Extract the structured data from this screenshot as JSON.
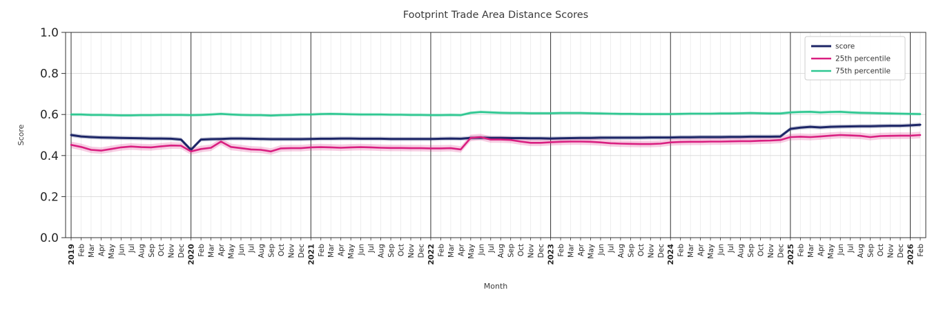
{
  "chart_data": {
    "type": "line",
    "title": "Footprint Trade Area Distance Scores",
    "xlabel": "Month",
    "ylabel": "Score",
    "ylim": [
      0.0,
      1.0
    ],
    "yticks": [
      0.0,
      0.2,
      0.4,
      0.6,
      0.8,
      1.0
    ],
    "grid": true,
    "legend_position": "upper right",
    "categories": [
      "2019",
      "Feb",
      "Mar",
      "Apr",
      "May",
      "Jun",
      "Jul",
      "Aug",
      "Sep",
      "Oct",
      "Nov",
      "Dec",
      "2020",
      "Feb",
      "Mar",
      "Apr",
      "May",
      "Jun",
      "Jul",
      "Aug",
      "Sep",
      "Oct",
      "Nov",
      "Dec",
      "2021",
      "Feb",
      "Mar",
      "Apr",
      "May",
      "Jun",
      "Jul",
      "Aug",
      "Sep",
      "Oct",
      "Nov",
      "Dec",
      "2022",
      "Feb",
      "Mar",
      "Apr",
      "May",
      "Jun",
      "Jul",
      "Aug",
      "Sep",
      "Oct",
      "Nov",
      "Dec",
      "2023",
      "Feb",
      "Mar",
      "Apr",
      "May",
      "Jun",
      "Jul",
      "Aug",
      "Sep",
      "Oct",
      "Nov",
      "Dec",
      "2024",
      "Feb",
      "Mar",
      "Apr",
      "May",
      "Jun",
      "Jul",
      "Aug",
      "Sep",
      "Oct",
      "Nov",
      "Dec",
      "2025",
      "Feb",
      "Mar",
      "Apr",
      "May",
      "Jun",
      "Jul",
      "Aug",
      "Sep",
      "Oct",
      "Nov",
      "Dec",
      "2026",
      "Feb"
    ],
    "series": [
      {
        "name": "score",
        "color": "#1c2566",
        "band": 0.01,
        "values": [
          0.5,
          0.493,
          0.49,
          0.488,
          0.487,
          0.486,
          0.485,
          0.484,
          0.483,
          0.483,
          0.482,
          0.478,
          0.428,
          0.478,
          0.48,
          0.481,
          0.483,
          0.483,
          0.482,
          0.481,
          0.48,
          0.48,
          0.48,
          0.48,
          0.481,
          0.482,
          0.482,
          0.483,
          0.483,
          0.482,
          0.482,
          0.482,
          0.481,
          0.481,
          0.481,
          0.481,
          0.481,
          0.482,
          0.483,
          0.482,
          0.486,
          0.487,
          0.486,
          0.486,
          0.485,
          0.485,
          0.484,
          0.484,
          0.483,
          0.484,
          0.485,
          0.486,
          0.486,
          0.487,
          0.487,
          0.487,
          0.487,
          0.487,
          0.488,
          0.488,
          0.488,
          0.489,
          0.489,
          0.49,
          0.49,
          0.49,
          0.491,
          0.491,
          0.492,
          0.492,
          0.492,
          0.493,
          0.53,
          0.536,
          0.54,
          0.537,
          0.54,
          0.541,
          0.542,
          0.543,
          0.543,
          0.544,
          0.545,
          0.545,
          0.547,
          0.55
        ]
      },
      {
        "name": "25th percentile",
        "color": "#d91e80",
        "band": 0.016,
        "values": [
          0.452,
          0.442,
          0.428,
          0.424,
          0.432,
          0.44,
          0.444,
          0.441,
          0.44,
          0.445,
          0.449,
          0.448,
          0.42,
          0.432,
          0.438,
          0.468,
          0.442,
          0.436,
          0.43,
          0.428,
          0.42,
          0.435,
          0.436,
          0.436,
          0.44,
          0.441,
          0.44,
          0.438,
          0.44,
          0.441,
          0.44,
          0.438,
          0.437,
          0.437,
          0.436,
          0.436,
          0.435,
          0.435,
          0.436,
          0.43,
          0.486,
          0.49,
          0.478,
          0.478,
          0.476,
          0.468,
          0.462,
          0.462,
          0.465,
          0.467,
          0.468,
          0.468,
          0.467,
          0.464,
          0.46,
          0.458,
          0.457,
          0.456,
          0.456,
          0.458,
          0.464,
          0.466,
          0.467,
          0.467,
          0.468,
          0.468,
          0.469,
          0.47,
          0.47,
          0.472,
          0.473,
          0.476,
          0.49,
          0.492,
          0.49,
          0.493,
          0.497,
          0.5,
          0.498,
          0.496,
          0.49,
          0.495,
          0.496,
          0.497,
          0.497,
          0.5
        ]
      },
      {
        "name": "75th percentile",
        "color": "#2ec791",
        "band": 0.008,
        "values": [
          0.6,
          0.6,
          0.598,
          0.598,
          0.597,
          0.596,
          0.596,
          0.597,
          0.597,
          0.598,
          0.598,
          0.598,
          0.597,
          0.598,
          0.6,
          0.603,
          0.6,
          0.598,
          0.597,
          0.597,
          0.595,
          0.597,
          0.598,
          0.6,
          0.6,
          0.602,
          0.603,
          0.602,
          0.601,
          0.6,
          0.6,
          0.6,
          0.599,
          0.599,
          0.598,
          0.598,
          0.597,
          0.597,
          0.598,
          0.597,
          0.608,
          0.612,
          0.61,
          0.608,
          0.607,
          0.607,
          0.606,
          0.606,
          0.606,
          0.607,
          0.607,
          0.607,
          0.606,
          0.605,
          0.604,
          0.603,
          0.603,
          0.602,
          0.602,
          0.602,
          0.602,
          0.603,
          0.604,
          0.604,
          0.604,
          0.605,
          0.605,
          0.606,
          0.607,
          0.606,
          0.605,
          0.605,
          0.61,
          0.612,
          0.613,
          0.61,
          0.612,
          0.613,
          0.61,
          0.608,
          0.607,
          0.606,
          0.605,
          0.604,
          0.603,
          0.602
        ]
      }
    ]
  }
}
